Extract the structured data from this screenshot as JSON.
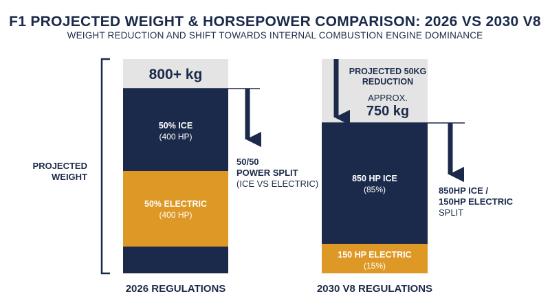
{
  "title": "F1 PROJECTED WEIGHT & HORSEPOWER COMPARISON: 2026 VS 2030 V8",
  "subtitle": "WEIGHT REDUCTION AND SHIFT TOWARDS INTERNAL COMBUSTION ENGINE DOMINANCE",
  "colors": {
    "navy": "#1b2a4a",
    "gold": "#dd9826",
    "grey": "#e4e4e4",
    "white": "#ffffff"
  },
  "chart_data": {
    "type": "bar",
    "stacked": true,
    "y_label_lines": [
      "PROJECTED",
      "WEIGHT"
    ],
    "categories": [
      "2026 REGULATIONS",
      "2030 V8 REGULATIONS"
    ],
    "bars": [
      {
        "category": "2026 REGULATIONS",
        "weight_label": "800+ kg",
        "weight_value": 800,
        "segments": [
          {
            "name": "ice",
            "share": 0.5,
            "label": "50% ICE",
            "sublabel": "(400 HP)",
            "color": "#1b2a4a"
          },
          {
            "name": "electric",
            "share": 0.5,
            "label": "50% ELECTRIC",
            "sublabel": "(400 HP)",
            "color": "#dd9826"
          }
        ],
        "annotation_lines": [
          {
            "text": "50/50",
            "bold": true
          },
          {
            "text": "POWER SPLIT",
            "bold": true
          },
          {
            "text": "(ICE VS ELECTRIC)",
            "bold": false
          }
        ]
      },
      {
        "category": "2030 V8 REGULATIONS",
        "weight_prefix": "APPROX.",
        "weight_label": "750 kg",
        "weight_value": 750,
        "reduction_lines": [
          "PROJECTED 50KG",
          "REDUCTION"
        ],
        "reduction_value": 50,
        "segments": [
          {
            "name": "ice",
            "share": 0.85,
            "label": "850 HP ICE",
            "sublabel": "(85%)",
            "color": "#1b2a4a"
          },
          {
            "name": "electric",
            "share": 0.15,
            "label": "150 HP ELECTRIC",
            "sublabel": "(15%)",
            "color": "#dd9826"
          }
        ],
        "annotation_lines": [
          {
            "text": "850HP ICE /",
            "bold": true
          },
          {
            "text": "150HP ELECTRIC",
            "bold": true
          },
          {
            "text": "SPLIT",
            "bold": false
          }
        ]
      }
    ]
  }
}
